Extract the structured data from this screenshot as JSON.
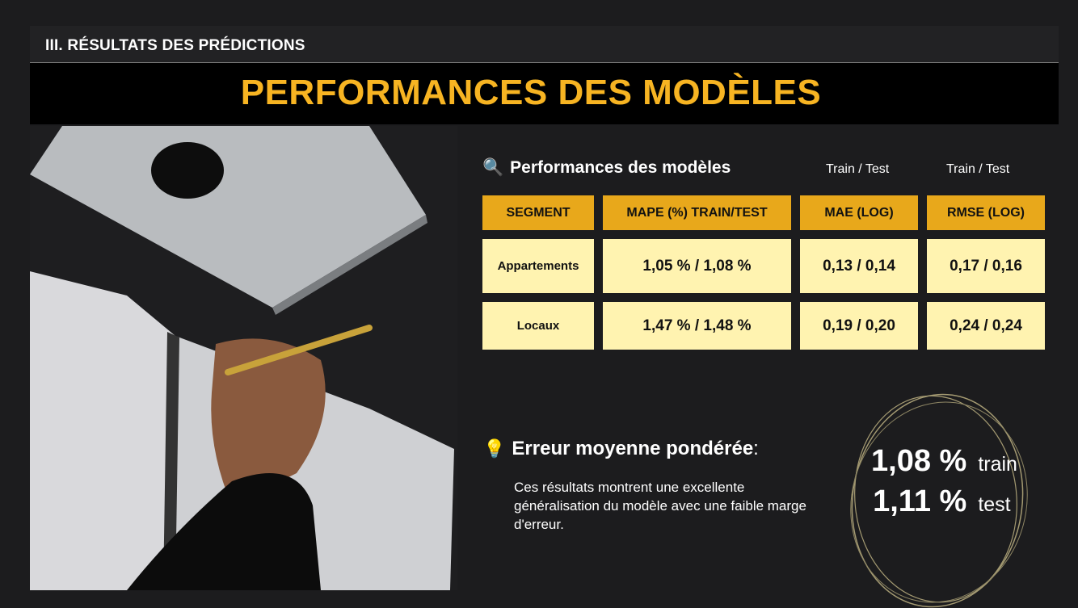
{
  "section_label": "III. RÉSULTATS DES PRÉDICTIONS",
  "title": "PERFORMANCES DES MODÈLES",
  "table_title": "Performances des modèles",
  "table_title_icon": "magnifier-icon",
  "column_notes": [
    "Train / Test",
    "Train / Test"
  ],
  "table": {
    "headers": [
      "SEGMENT",
      "MAPE (%) TRAIN/TEST",
      "MAE (LOG)",
      "RMSE (LOG)"
    ],
    "rows": [
      [
        "Appartements",
        "1,05 % / 1,08 %",
        "0,13 / 0,14",
        "0,17 / 0,16"
      ],
      [
        "Locaux",
        "1,47 % / 1,48 %",
        "0,19 / 0,20",
        "0,24 / 0,24"
      ]
    ]
  },
  "summary": {
    "icon": "lightbulb-icon",
    "title": "Erreur moyenne pondérée",
    "colon": ":",
    "text": "Ces résultats montrent une excellente généralisation du modèle avec une faible marge d'erreur.",
    "train_value": "1,08 %",
    "train_label": "train",
    "test_value": "1,11 %",
    "test_label": "test"
  },
  "colors": {
    "accent": "#f7b422",
    "header_cell": "#e8a81b",
    "body_cell": "#fff3b0",
    "background": "#1c1c1e"
  }
}
